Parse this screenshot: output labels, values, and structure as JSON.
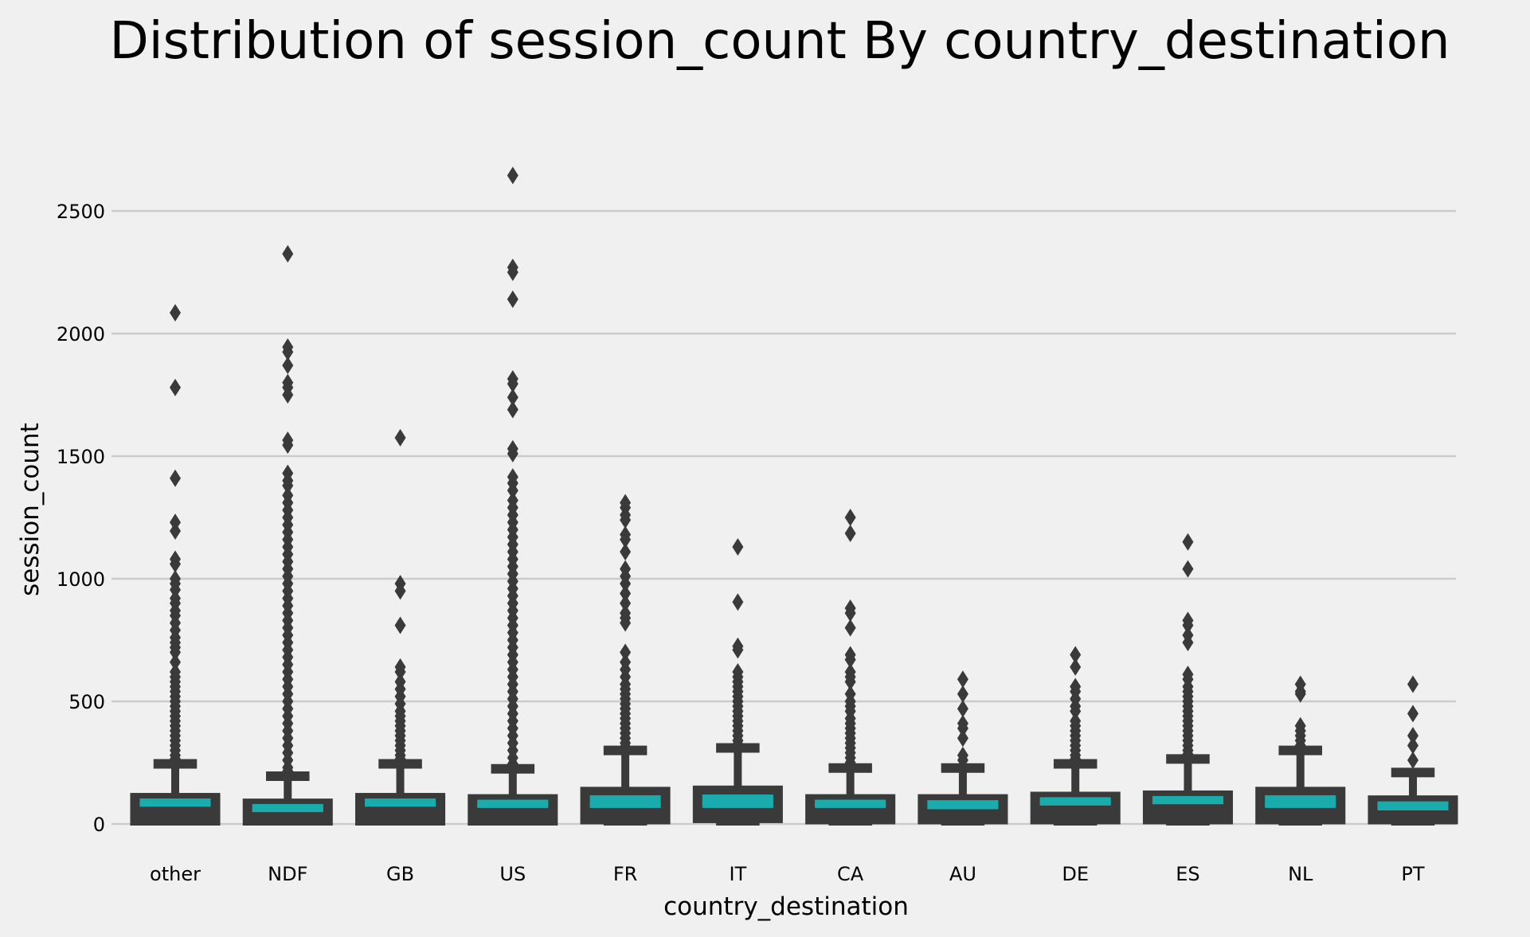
{
  "chart_data": {
    "type": "boxplot",
    "title": "Distribution of session_count By country_destination",
    "xlabel": "country_destination",
    "ylabel": "session_count",
    "ylim": [
      -20,
      2700
    ],
    "yticks": [
      0,
      500,
      1000,
      1500,
      2000,
      2500
    ],
    "grid": "horizontal",
    "colors": {
      "background": "#f0f0f0",
      "grid": "#cbcbcb",
      "box": "#3a3a3a",
      "median": "#1aacac",
      "text": "#000000"
    },
    "categories": [
      "other",
      "NDF",
      "GB",
      "US",
      "FR",
      "IT",
      "CA",
      "AU",
      "DE",
      "ES",
      "NL",
      "PT"
    ],
    "boxes": [
      {
        "category": "other",
        "q1": 0,
        "median": 80,
        "q3": 120,
        "whisker_low": 0,
        "whisker_high": 245,
        "outliers": [
          2085,
          1780,
          1410,
          1230,
          1195,
          1080,
          1060,
          1000,
          980,
          955,
          920,
          900,
          870,
          850,
          820,
          790,
          760,
          740,
          720,
          700,
          660,
          620,
          600,
          580,
          560,
          540,
          520,
          500,
          480,
          460,
          440,
          420,
          400,
          380,
          360,
          340,
          320,
          300,
          280,
          265
        ]
      },
      {
        "category": "NDF",
        "q1": 0,
        "median": 58,
        "q3": 97,
        "whisker_low": 0,
        "whisker_high": 195,
        "outliers": [
          2325,
          1945,
          1925,
          1870,
          1800,
          1780,
          1750,
          1565,
          1545,
          1430,
          1400,
          1380,
          1340,
          1310,
          1280,
          1250,
          1220,
          1190,
          1160,
          1130,
          1100,
          1070,
          1040,
          1010,
          980,
          950,
          920,
          890,
          860,
          830,
          800,
          770,
          740,
          710,
          680,
          650,
          620,
          590,
          560,
          530,
          500,
          470,
          440,
          410,
          380,
          350,
          320,
          290,
          260,
          230,
          215
        ]
      },
      {
        "category": "GB",
        "q1": 0,
        "median": 80,
        "q3": 120,
        "whisker_low": 0,
        "whisker_high": 245,
        "outliers": [
          1575,
          980,
          950,
          810,
          640,
          620,
          580,
          550,
          520,
          490,
          460,
          440,
          420,
          400,
          380,
          360,
          340,
          320,
          300,
          280,
          265
        ]
      },
      {
        "category": "US",
        "q1": 0,
        "median": 75,
        "q3": 115,
        "whisker_low": 0,
        "whisker_high": 225,
        "outliers": [
          2645,
          2270,
          2250,
          2140,
          1815,
          1795,
          1740,
          1690,
          1530,
          1510,
          1415,
          1390,
          1360,
          1320,
          1290,
          1260,
          1230,
          1200,
          1170,
          1140,
          1110,
          1080,
          1050,
          1020,
          990,
          960,
          930,
          900,
          870,
          840,
          810,
          780,
          750,
          720,
          690,
          660,
          630,
          600,
          570,
          540,
          510,
          480,
          450,
          420,
          390,
          360,
          330,
          300,
          270,
          245
        ]
      },
      {
        "category": "FR",
        "q1": 5,
        "median": 75,
        "q3": 145,
        "whisker_low": 0,
        "whisker_high": 300,
        "outliers": [
          1310,
          1290,
          1260,
          1240,
          1180,
          1160,
          1110,
          1040,
          1010,
          980,
          940,
          900,
          860,
          840,
          820,
          700,
          660,
          630,
          600,
          570,
          550,
          530,
          510,
          490,
          470,
          450,
          430,
          410,
          390,
          370,
          350,
          330,
          315
        ]
      },
      {
        "category": "IT",
        "q1": 10,
        "median": 75,
        "q3": 150,
        "whisker_low": 0,
        "whisker_high": 310,
        "outliers": [
          1130,
          905,
          725,
          710,
          620,
          600,
          580,
          560,
          540,
          520,
          500,
          480,
          460,
          440,
          420,
          400,
          380,
          360,
          340,
          325
        ]
      },
      {
        "category": "CA",
        "q1": 5,
        "median": 75,
        "q3": 115,
        "whisker_low": 0,
        "whisker_high": 228,
        "outliers": [
          1250,
          1185,
          880,
          860,
          800,
          690,
          670,
          620,
          600,
          580,
          530,
          500,
          480,
          460,
          430,
          410,
          390,
          370,
          350,
          330,
          310,
          290,
          270,
          250
        ]
      },
      {
        "category": "AU",
        "q1": 5,
        "median": 70,
        "q3": 115,
        "whisker_low": 0,
        "whisker_high": 228,
        "outliers": [
          590,
          530,
          470,
          410,
          390,
          350,
          280,
          260
        ]
      },
      {
        "category": "DE",
        "q1": 5,
        "median": 85,
        "q3": 125,
        "whisker_low": 0,
        "whisker_high": 245,
        "outliers": [
          690,
          640,
          560,
          540,
          510,
          480,
          460,
          420,
          400,
          380,
          360,
          340,
          320,
          300,
          280,
          265
        ]
      },
      {
        "category": "ES",
        "q1": 5,
        "median": 90,
        "q3": 130,
        "whisker_low": 0,
        "whisker_high": 265,
        "outliers": [
          1150,
          1040,
          830,
          810,
          770,
          740,
          610,
          590,
          560,
          540,
          520,
          500,
          480,
          460,
          440,
          420,
          400,
          380,
          360,
          340,
          320,
          300,
          285
        ]
      },
      {
        "category": "NL",
        "q1": 5,
        "median": 75,
        "q3": 145,
        "whisker_low": 0,
        "whisker_high": 300,
        "outliers": [
          570,
          540,
          530,
          400,
          380,
          360,
          340,
          320
        ]
      },
      {
        "category": "PT",
        "q1": 5,
        "median": 65,
        "q3": 110,
        "whisker_low": 0,
        "whisker_high": 210,
        "outliers": [
          570,
          450,
          360,
          320,
          260
        ]
      }
    ]
  }
}
